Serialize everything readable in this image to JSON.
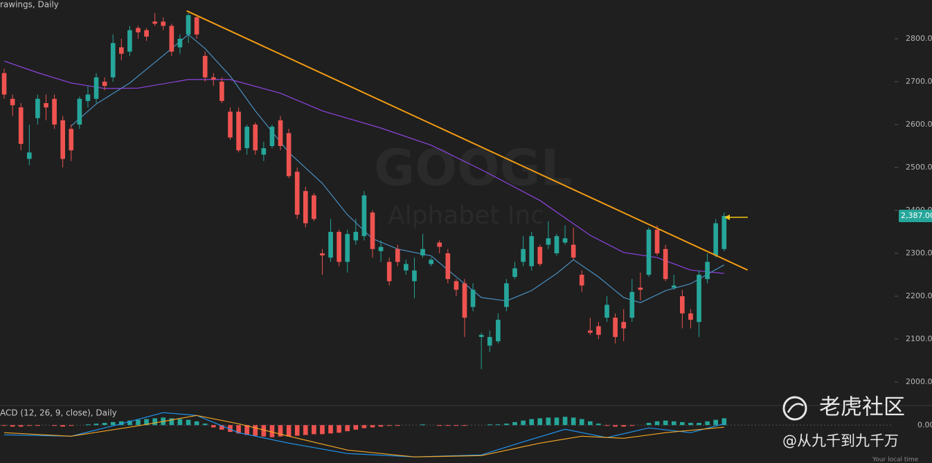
{
  "chart_data": [
    {
      "type": "candlestick",
      "title": "rawings, Daily",
      "watermark_symbol": "GOOGL",
      "watermark_name": "Alphabet Inc",
      "up_color": "#26a69a",
      "down_color": "#ef5350",
      "xlim": [
        -0.5,
        106.2
      ],
      "ylim": [
        1946.8,
        2890.3
      ],
      "yticks": [
        {
          "value": 2000,
          "label": "2000.00"
        },
        {
          "value": 2100,
          "label": "2100.00"
        },
        {
          "value": 2200,
          "label": "2200.00"
        },
        {
          "value": 2300,
          "label": "2300.00"
        },
        {
          "value": 2400,
          "label": "2400.00"
        },
        {
          "value": 2500,
          "label": "2500.00"
        },
        {
          "value": 2600,
          "label": "2600.00"
        },
        {
          "value": 2700,
          "label": "2700.00"
        },
        {
          "value": 2800,
          "label": "2800.00"
        }
      ],
      "open": [
        2720,
        2660,
        2640,
        2520,
        2615,
        2650,
        2660,
        2610,
        2590,
        2600,
        2655,
        2660,
        2700,
        2710,
        2780,
        2770,
        2825,
        2820,
        2840,
        2840,
        2830,
        2780,
        2810,
        2850,
        2760,
        2710,
        2700,
        2630,
        2630,
        2545,
        2600,
        2530,
        2550,
        2610,
        2580,
        2490,
        2445,
        2435,
        2300,
        2290,
        2350,
        2280,
        2330,
        2340,
        2395,
        2305,
        2280,
        2310,
        2260,
        2235,
        2295,
        2275,
        2325,
        2300,
        2235,
        2230,
        2175,
        2105,
        2085,
        2095,
        2175,
        2245,
        2280,
        2270,
        2315,
        2320,
        2300,
        2325,
        2320,
        2250,
        2120,
        2130,
        2150,
        2150,
        2140,
        2150,
        2220,
        2250,
        2355,
        2310,
        2220,
        2200,
        2160,
        2140,
        2240,
        2295,
        2310
      ],
      "high": [
        2730,
        2670,
        2650,
        2600,
        2670,
        2670,
        2670,
        2620,
        2600,
        2665,
        2690,
        2720,
        2710,
        2810,
        2800,
        2830,
        2830,
        2825,
        2860,
        2850,
        2835,
        2810,
        2860,
        2855,
        2770,
        2720,
        2710,
        2640,
        2640,
        2600,
        2605,
        2560,
        2600,
        2620,
        2590,
        2500,
        2455,
        2440,
        2310,
        2380,
        2355,
        2355,
        2380,
        2445,
        2400,
        2330,
        2290,
        2320,
        2285,
        2290,
        2345,
        2290,
        2330,
        2310,
        2240,
        2240,
        2230,
        2115,
        2120,
        2160,
        2240,
        2280,
        2340,
        2350,
        2320,
        2375,
        2345,
        2365,
        2360,
        2260,
        2150,
        2140,
        2200,
        2160,
        2170,
        2240,
        2255,
        2360,
        2365,
        2320,
        2250,
        2215,
        2170,
        2260,
        2300,
        2380,
        2395
      ],
      "low": [
        2660,
        2620,
        2540,
        2505,
        2600,
        2610,
        2590,
        2500,
        2515,
        2590,
        2640,
        2650,
        2680,
        2700,
        2750,
        2760,
        2800,
        2795,
        2830,
        2820,
        2760,
        2765,
        2790,
        2800,
        2700,
        2690,
        2650,
        2565,
        2535,
        2530,
        2530,
        2515,
        2545,
        2540,
        2475,
        2380,
        2360,
        2375,
        2250,
        2280,
        2270,
        2255,
        2320,
        2330,
        2290,
        2280,
        2225,
        2270,
        2250,
        2195,
        2290,
        2270,
        2300,
        2230,
        2200,
        2105,
        2165,
        2030,
        2070,
        2090,
        2165,
        2240,
        2270,
        2260,
        2270,
        2310,
        2295,
        2320,
        2285,
        2210,
        2110,
        2100,
        2140,
        2090,
        2095,
        2140,
        2190,
        2245,
        2295,
        2235,
        2215,
        2125,
        2125,
        2105,
        2230,
        2290,
        2305
      ],
      "close": [
        2670,
        2645,
        2555,
        2535,
        2660,
        2640,
        2600,
        2520,
        2540,
        2660,
        2670,
        2710,
        2690,
        2790,
        2765,
        2820,
        2815,
        2805,
        2835,
        2830,
        2770,
        2800,
        2855,
        2810,
        2710,
        2705,
        2655,
        2570,
        2540,
        2595,
        2540,
        2545,
        2595,
        2550,
        2480,
        2390,
        2370,
        2380,
        2295,
        2350,
        2280,
        2345,
        2350,
        2435,
        2310,
        2315,
        2235,
        2280,
        2275,
        2260,
        2310,
        2285,
        2315,
        2240,
        2215,
        2150,
        2215,
        2110,
        2105,
        2145,
        2230,
        2265,
        2310,
        2340,
        2275,
        2335,
        2340,
        2335,
        2290,
        2225,
        2115,
        2110,
        2180,
        2105,
        2125,
        2210,
        2215,
        2355,
        2300,
        2240,
        2225,
        2160,
        2145,
        2250,
        2280,
        2370,
        2387
      ],
      "lines": [
        {
          "color": "#4a90c2",
          "x": [
            8,
            11,
            15,
            19,
            22,
            24,
            27,
            30,
            34,
            38,
            41,
            44,
            47,
            51,
            54,
            57,
            60,
            63,
            66,
            68,
            71,
            74,
            76,
            79,
            82,
            86
          ],
          "values": [
            2597,
            2648,
            2697,
            2761,
            2810,
            2777,
            2713,
            2632,
            2535,
            2463,
            2390,
            2334,
            2310,
            2294,
            2245,
            2197,
            2189,
            2213,
            2253,
            2285,
            2245,
            2197,
            2185,
            2213,
            2229,
            2273
          ]
        },
        {
          "color": "#8e44e0",
          "x": [
            0,
            4,
            8,
            12,
            16,
            22,
            27,
            33,
            38,
            45,
            51,
            57,
            64,
            70,
            74,
            78,
            82,
            86
          ],
          "values": [
            2748,
            2721,
            2697,
            2684,
            2685,
            2705,
            2705,
            2673,
            2632,
            2592,
            2552,
            2495,
            2423,
            2342,
            2302,
            2290,
            2261,
            2253
          ]
        }
      ],
      "trendline": {
        "color": "#f39c12",
        "x": [
          21.8,
          88.8
        ],
        "values": [
          2865,
          2261
        ]
      },
      "last_price": {
        "value": 2387,
        "label": "2,387.00",
        "color": "#26a69a"
      }
    },
    {
      "type": "macd",
      "title": "ACD (12, 26, 9, close), Daily",
      "xlim": [
        -0.5,
        106.2
      ],
      "ylim": [
        -50,
        24
      ],
      "yticks": [
        {
          "value": 0,
          "label": "0.00"
        }
      ],
      "histogram": [
        -1,
        -2,
        -2,
        -1,
        -1,
        0,
        -1,
        -2,
        -1,
        0,
        1,
        2,
        3,
        4,
        5,
        6,
        7,
        8,
        9,
        10,
        9,
        8,
        7,
        5,
        2,
        -3,
        -6,
        -9,
        -11,
        -13,
        -14,
        -15,
        -16,
        -15,
        -15,
        -14,
        -13,
        -12,
        -12,
        -11,
        -10,
        -8,
        -6,
        -4,
        -3,
        -2,
        -1,
        -1,
        0,
        0,
        1,
        0,
        -1,
        -1,
        -1,
        -1,
        0,
        0,
        1,
        1,
        2,
        4,
        6,
        8,
        9,
        10,
        10,
        11,
        10,
        8,
        5,
        2,
        -1,
        -2,
        -2,
        -1,
        0,
        3,
        5,
        6,
        5,
        4,
        3,
        3,
        5,
        7,
        9
      ],
      "up_color": "#26a69a",
      "down_color": "#ef5350",
      "lines": [
        {
          "color": "#2196f3",
          "x": [
            0,
            8,
            14,
            19,
            23,
            28,
            34,
            41,
            49,
            57,
            62,
            67,
            72,
            77,
            82,
            86
          ],
          "values": [
            -12.8,
            -14.6,
            1.8,
            16.5,
            12.8,
            -10,
            -23.8,
            -37.5,
            -42,
            -39.3,
            -22,
            -5.5,
            -16.5,
            -3.7,
            -10,
            1.8
          ]
        },
        {
          "color": "#f5a623",
          "x": [
            0,
            8,
            16,
            23,
            28,
            34,
            41,
            49,
            57,
            64,
            69,
            74,
            79,
            86
          ],
          "values": [
            -10,
            -14.6,
            -0.9,
            12.8,
            1.8,
            -14.6,
            -32.9,
            -42,
            -40.2,
            -23.8,
            -14.6,
            -17.4,
            -10,
            -2.7
          ]
        }
      ]
    }
  ],
  "watermark": {
    "brand": "老虎社区",
    "handle": "@从九千到九千万"
  },
  "footer": "Your local time"
}
